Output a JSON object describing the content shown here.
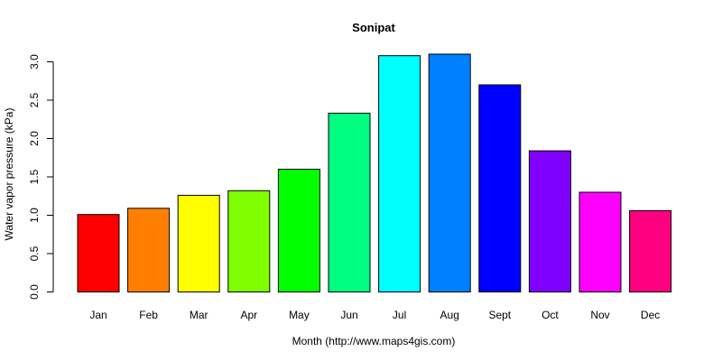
{
  "chart_data": {
    "type": "bar",
    "title": "Sonipat",
    "xlabel": "Month (http://www.maps4gis.com)",
    "ylabel": "Water vapor pressure (kPa)",
    "categories": [
      "Jan",
      "Feb",
      "Mar",
      "Apr",
      "May",
      "Jun",
      "Jul",
      "Aug",
      "Sept",
      "Oct",
      "Nov",
      "Dec"
    ],
    "values": [
      1.01,
      1.09,
      1.26,
      1.32,
      1.6,
      2.33,
      3.08,
      3.1,
      2.7,
      1.84,
      1.3,
      1.06
    ],
    "colors": [
      "#FF0000",
      "#FF8000",
      "#FFFF00",
      "#80FF00",
      "#00FF00",
      "#00FF80",
      "#00FFFF",
      "#0080FF",
      "#0000FF",
      "#8000FF",
      "#FF00FF",
      "#FF0080"
    ],
    "yticks": [
      "0.0",
      "0.5",
      "1.0",
      "1.5",
      "2.0",
      "2.5",
      "3.0"
    ],
    "ylim": [
      0,
      3.0
    ],
    "grid": false,
    "legend": "none"
  }
}
